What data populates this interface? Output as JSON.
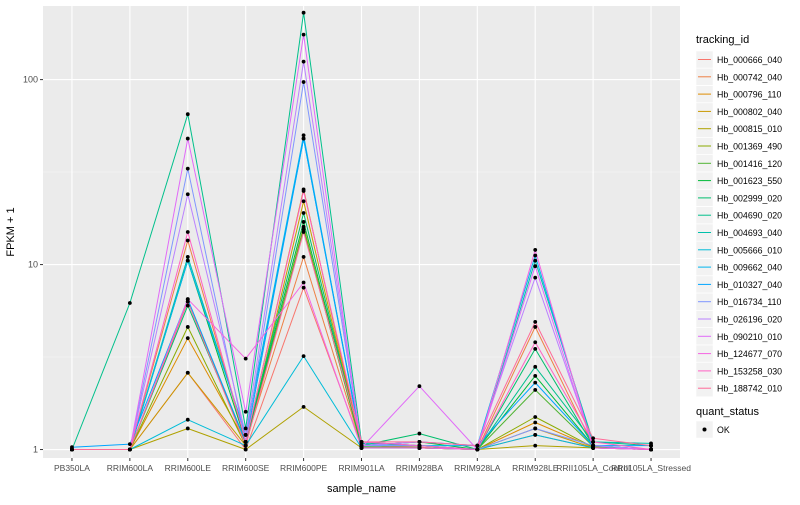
{
  "chart_data": {
    "type": "line",
    "xlabel": "sample_name",
    "ylabel": "FPKM + 1",
    "y_scale": "log10",
    "ylim": [
      0.9,
      250
    ],
    "y_ticks": [
      1,
      10,
      100
    ],
    "y_tick_labels": [
      "1",
      "10",
      "100"
    ],
    "grid": true,
    "legend_placement": "right",
    "legend_title": "tracking_id",
    "categories": [
      "PB350LA",
      "RRIM600LA",
      "RRIM600LE",
      "RRIM600SE",
      "RRIM600PE",
      "RRIM901LA",
      "RRIM928BA",
      "RRIM928LA",
      "RRIM928LE",
      "RRII105LA_Control",
      "RRII105LA_Stressed"
    ],
    "category_tick_labels": [
      "PB350LA",
      "RRIM600LA",
      "RRIM600LE",
      "RRIM600SE",
      "RRIM600PE",
      "RRIM901LA",
      "RRIM928BA",
      "RRIM928LA",
      "RRIM928LE",
      "RRII105LA_Control",
      "RRII105LA_Stressed"
    ],
    "series": [
      {
        "name": "Hb_000666_040",
        "color": "#F8766D",
        "values": [
          1,
          1,
          2.6,
          1,
          7.5,
          1.05,
          1.02,
          1,
          1.2,
          1.02,
          1
        ]
      },
      {
        "name": "Hb_000742_040",
        "color": "#EE8043",
        "values": [
          1,
          1,
          13.5,
          1.1,
          11,
          1.05,
          1.03,
          1,
          4.6,
          1.05,
          1
        ]
      },
      {
        "name": "Hb_000796_110",
        "color": "#DE8C00",
        "values": [
          1,
          1,
          4,
          1.1,
          25.5,
          1.03,
          1.02,
          1,
          1.4,
          1.03,
          1
        ]
      },
      {
        "name": "Hb_000802_040",
        "color": "#C99800",
        "values": [
          1,
          1,
          2.6,
          1.05,
          22,
          1.02,
          1.02,
          1,
          1.3,
          1.02,
          1
        ]
      },
      {
        "name": "Hb_000815_010",
        "color": "#AFA100",
        "values": [
          1,
          1,
          1.3,
          1,
          1.7,
          1.02,
          1.02,
          1,
          1.05,
          1.02,
          1
        ]
      },
      {
        "name": "Hb_001369_490",
        "color": "#8BAB00",
        "values": [
          1,
          1,
          4.6,
          1.05,
          16,
          1.03,
          1.02,
          1,
          1.5,
          1.03,
          1
        ]
      },
      {
        "name": "Hb_001416_120",
        "color": "#4FB433",
        "values": [
          1,
          1,
          6.3,
          1.1,
          15.5,
          1.04,
          1.05,
          1,
          2.1,
          1.04,
          1
        ]
      },
      {
        "name": "Hb_001623_550",
        "color": "#00BA38",
        "values": [
          1,
          1,
          10.5,
          1.1,
          17,
          1.05,
          1.1,
          1,
          2.5,
          1.05,
          1
        ]
      },
      {
        "name": "Hb_002999_020",
        "color": "#00BE6C",
        "values": [
          1,
          1,
          6,
          1.1,
          19,
          1.05,
          1.22,
          1,
          3.5,
          1.05,
          1
        ]
      },
      {
        "name": "Hb_004690_020",
        "color": "#00C08B",
        "values": [
          1,
          6.2,
          65,
          1.3,
          230,
          1.1,
          1.05,
          1,
          2.8,
          1.1,
          1.05
        ]
      },
      {
        "name": "Hb_004693_040",
        "color": "#00C0AB",
        "values": [
          1,
          1,
          11,
          1.2,
          48,
          1.08,
          1.05,
          1,
          10.5,
          1.1,
          1.08
        ]
      },
      {
        "name": "Hb_005666_010",
        "color": "#00BCD8",
        "values": [
          1,
          1,
          1.45,
          1.05,
          3.2,
          1.02,
          1.02,
          1,
          1.2,
          1.02,
          1
        ]
      },
      {
        "name": "Hb_009662_040",
        "color": "#00B5EE",
        "values": [
          1,
          1,
          10.5,
          1.2,
          50,
          1.05,
          1.05,
          1.05,
          11.2,
          1.05,
          1
        ]
      },
      {
        "name": "Hb_010327_040",
        "color": "#00A5FF",
        "values": [
          1.03,
          1.07,
          6.5,
          1.1,
          48,
          1.05,
          1.1,
          1.05,
          2.3,
          1.05,
          1.05
        ]
      },
      {
        "name": "Hb_016734_110",
        "color": "#7F96FF",
        "values": [
          1,
          1,
          33,
          1.1,
          97,
          1.05,
          1.05,
          1,
          1.3,
          1.05,
          1
        ]
      },
      {
        "name": "Hb_026196_020",
        "color": "#BB81FF",
        "values": [
          1,
          1,
          24,
          1.2,
          125,
          1.05,
          1.1,
          1.05,
          8.5,
          1.05,
          1
        ]
      },
      {
        "name": "Hb_090210_010",
        "color": "#E16AF8",
        "values": [
          1,
          1,
          48,
          1.6,
          175,
          1.02,
          2.2,
          1,
          9.8,
          1.02,
          1
        ]
      },
      {
        "name": "Hb_124677_070",
        "color": "#F564E3",
        "values": [
          1,
          1,
          6.5,
          3.1,
          8,
          1.02,
          1.02,
          1,
          12,
          1.02,
          1
        ]
      },
      {
        "name": "Hb_153258_030",
        "color": "#FF61C3",
        "values": [
          1,
          1,
          15,
          1.1,
          25,
          1.1,
          1.05,
          1,
          3.8,
          1.1,
          1
        ]
      },
      {
        "name": "Hb_188742_010",
        "color": "#FF6A98",
        "values": [
          1,
          1,
          6.3,
          1.05,
          15,
          1.1,
          1.1,
          1.05,
          4.9,
          1.15,
          1.05
        ]
      }
    ],
    "shape_legend": {
      "title": "quant_status",
      "items": [
        {
          "label": "OK"
        }
      ]
    }
  }
}
